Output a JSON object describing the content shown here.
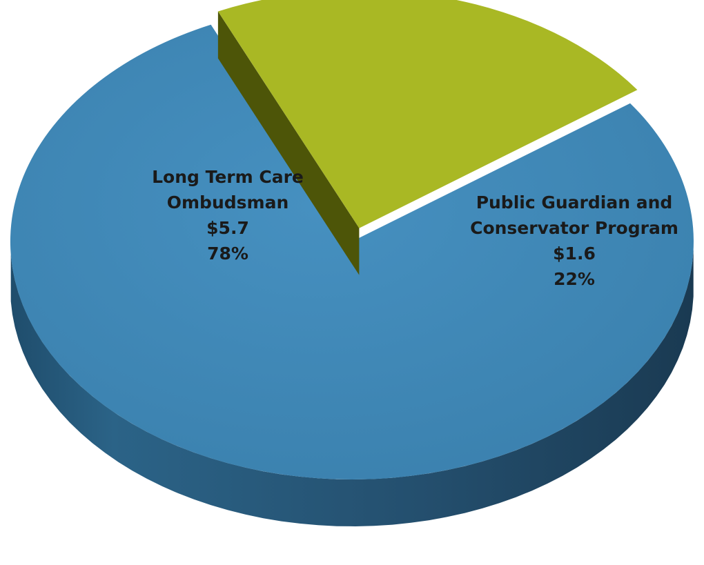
{
  "chart_data": {
    "type": "pie",
    "title": "",
    "slices": [
      {
        "label_lines": [
          "Long Term Care",
          "Ombudsman"
        ],
        "amount": "$5.7",
        "percent_label": "78%",
        "value": 5.7,
        "percent": 78,
        "color": "#3f87b6",
        "exploded": false
      },
      {
        "label_lines": [
          "Public Guardian and",
          "Conservator Program"
        ],
        "amount": "$1.6",
        "percent_label": "22%",
        "value": 1.6,
        "percent": 22,
        "color": "#a9b824",
        "exploded": true
      }
    ],
    "style": "3d-exploded"
  }
}
